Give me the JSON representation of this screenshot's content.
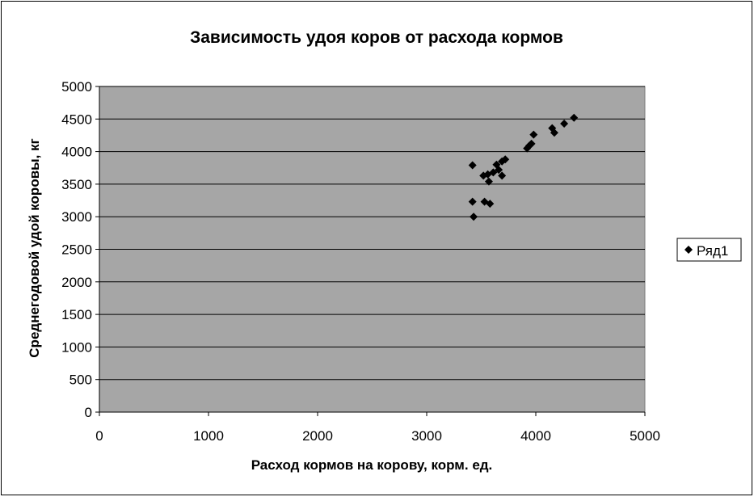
{
  "chart_data": {
    "type": "scatter",
    "title": "Зависимость удоя коров от расхода кормов",
    "xlabel": "Расход кормов на корову, корм. ед.",
    "ylabel": "Среднегодовой удой коровы, кг",
    "xlim": [
      0,
      5000
    ],
    "ylim": [
      0,
      5000
    ],
    "x_ticks": [
      "0",
      "1000",
      "2000",
      "3000",
      "4000",
      "5000"
    ],
    "y_ticks": [
      "0",
      "500",
      "1000",
      "1500",
      "2000",
      "2500",
      "3000",
      "3500",
      "4000",
      "4500",
      "5000"
    ],
    "grid": "horizontal",
    "plot_background": "#a6a6a6",
    "marker": "diamond",
    "legend_position": "right",
    "series": [
      {
        "name": "Ряд1",
        "color": "#000000",
        "points": [
          {
            "x": 3420,
            "y": 3790
          },
          {
            "x": 3420,
            "y": 3230
          },
          {
            "x": 3430,
            "y": 3000
          },
          {
            "x": 3520,
            "y": 3630
          },
          {
            "x": 3530,
            "y": 3230
          },
          {
            "x": 3560,
            "y": 3650
          },
          {
            "x": 3570,
            "y": 3540
          },
          {
            "x": 3580,
            "y": 3200
          },
          {
            "x": 3610,
            "y": 3680
          },
          {
            "x": 3640,
            "y": 3800
          },
          {
            "x": 3660,
            "y": 3720
          },
          {
            "x": 3690,
            "y": 3630
          },
          {
            "x": 3690,
            "y": 3850
          },
          {
            "x": 3720,
            "y": 3880
          },
          {
            "x": 3920,
            "y": 4050
          },
          {
            "x": 3940,
            "y": 4090
          },
          {
            "x": 3960,
            "y": 4120
          },
          {
            "x": 3980,
            "y": 4260
          },
          {
            "x": 4150,
            "y": 4360
          },
          {
            "x": 4170,
            "y": 4290
          },
          {
            "x": 4260,
            "y": 4430
          },
          {
            "x": 4350,
            "y": 4520
          }
        ]
      }
    ]
  }
}
